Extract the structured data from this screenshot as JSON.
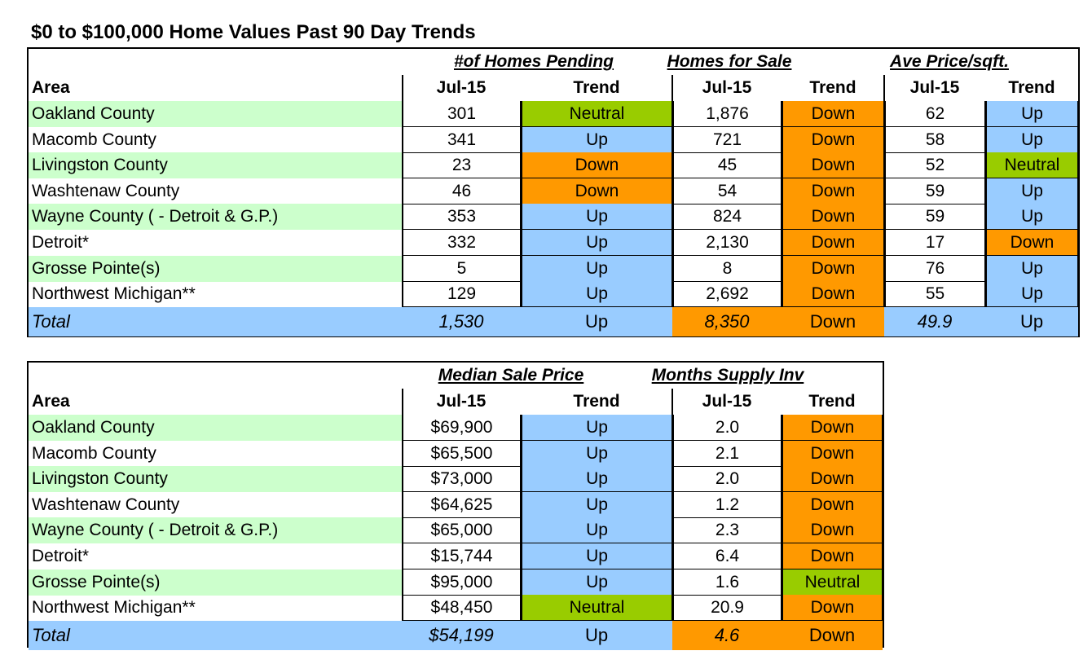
{
  "title": "$0 to $100,000 Home Values Past 90 Day Trends",
  "table1": {
    "groups": [
      "#of Homes Pending",
      "Homes for Sale",
      "Ave Price/sqft."
    ],
    "area_label": "Area",
    "month": "Jul-15",
    "trend": "Trend",
    "rows": [
      {
        "area": "Oakland County",
        "v1": "301",
        "t1": "Neutral",
        "v2": "1,876",
        "t2": "Down",
        "v3": "62",
        "t3": "Up"
      },
      {
        "area": "Macomb County",
        "v1": "341",
        "t1": "Up",
        "v2": "721",
        "t2": "Down",
        "v3": "58",
        "t3": "Up"
      },
      {
        "area": "Livingston County",
        "v1": "23",
        "t1": "Down",
        "v2": "45",
        "t2": "Down",
        "v3": "52",
        "t3": "Neutral"
      },
      {
        "area": "Washtenaw County",
        "v1": "46",
        "t1": "Down",
        "v2": "54",
        "t2": "Down",
        "v3": "59",
        "t3": "Up"
      },
      {
        "area": "Wayne County ( - Detroit & G.P.)",
        "v1": "353",
        "t1": "Up",
        "v2": "824",
        "t2": "Down",
        "v3": "59",
        "t3": "Up"
      },
      {
        "area": "Detroit*",
        "v1": "332",
        "t1": "Up",
        "v2": "2,130",
        "t2": "Down",
        "v3": "17",
        "t3": "Down"
      },
      {
        "area": "Grosse Pointe(s)",
        "v1": "5",
        "t1": "Up",
        "v2": "8",
        "t2": "Down",
        "v3": "76",
        "t3": "Up"
      },
      {
        "area": "Northwest Michigan**",
        "v1": "129",
        "t1": "Up",
        "v2": "2,692",
        "t2": "Down",
        "v3": "55",
        "t3": "Up"
      }
    ],
    "total": {
      "area": "Total",
      "v1": "1,530",
      "t1": "Up",
      "v2": "8,350",
      "t2": "Down",
      "v3": "49.9",
      "t3": "Up"
    }
  },
  "table2": {
    "groups": [
      "Median Sale Price",
      "Months Supply Inv"
    ],
    "area_label": "Area",
    "month": "Jul-15",
    "trend": "Trend",
    "rows": [
      {
        "area": "Oakland County",
        "v1": "$69,900",
        "t1": "Up",
        "v2": "2.0",
        "t2": "Down"
      },
      {
        "area": "Macomb County",
        "v1": "$65,500",
        "t1": "Up",
        "v2": "2.1",
        "t2": "Down"
      },
      {
        "area": "Livingston County",
        "v1": "$73,000",
        "t1": "Up",
        "v2": "2.0",
        "t2": "Down"
      },
      {
        "area": "Washtenaw County",
        "v1": "$64,625",
        "t1": "Up",
        "v2": "1.2",
        "t2": "Down"
      },
      {
        "area": "Wayne County ( - Detroit & G.P.)",
        "v1": "$65,000",
        "t1": "Up",
        "v2": "2.3",
        "t2": "Down"
      },
      {
        "area": "Detroit*",
        "v1": "$15,744",
        "t1": "Up",
        "v2": "6.4",
        "t2": "Down"
      },
      {
        "area": "Grosse Pointe(s)",
        "v1": "$95,000",
        "t1": "Up",
        "v2": "1.6",
        "t2": "Neutral"
      },
      {
        "area": "Northwest Michigan**",
        "v1": "$48,450",
        "t1": "Neutral",
        "v2": "20.9",
        "t2": "Down"
      }
    ],
    "total": {
      "area": "Total",
      "v1": "$54,199",
      "t1": "Up",
      "v2": "4.6",
      "t2": "Down"
    }
  },
  "colors": {
    "up": "#99ccff",
    "down": "#ff9900",
    "neutral": "#99cc00",
    "area_green": "#ccffcc"
  }
}
